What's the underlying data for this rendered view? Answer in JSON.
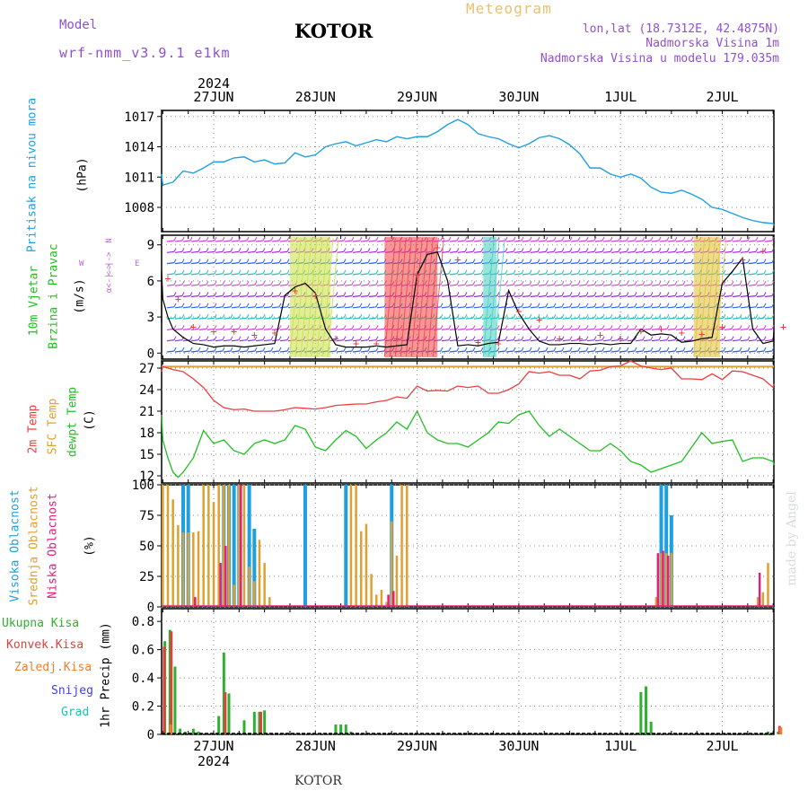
{
  "header": {
    "model_label": "Model",
    "model_name": "wrf-nmm_v3.9.1 e1km",
    "station": "KOTOR",
    "title": "Meteogram",
    "coords": "lon,lat (18.7312E, 42.4875N)",
    "elevation": "Nadmorska Visina 1m",
    "model_elevation": "Nadmorska Visina u modelu 179.035m"
  },
  "footer": {
    "station": "KOTOR",
    "credit": "made by Angel"
  },
  "time_axis": {
    "year": "2024",
    "labels": [
      "27JUN",
      "28JUN",
      "29JUN",
      "30JUN",
      "1JUL",
      "2JUL"
    ]
  },
  "colors": {
    "pressure": "#1ea0e0",
    "temp2m": "#e84040",
    "sfc": "#e0a030",
    "dewpt": "#20c020",
    "high_cloud": "#1ea0e0",
    "mid_cloud": "#e0a030",
    "low_cloud": "#e0207a",
    "total_precip": "#30b030",
    "conv_precip": "#e04040",
    "frozen_precip": "#f08030",
    "snow": "#4040e0",
    "hail": "#20c0b0"
  },
  "panels": {
    "pressure": {
      "ylabel_name": "Pritisak na nivou mora",
      "unit": "(hPa)"
    },
    "wind": {
      "ylabel_1": "10m Vjetar",
      "ylabel_2": "Brzina i Pravac",
      "unit": "(m/s)",
      "compass": [
        "N",
        "W",
        "E",
        "S"
      ],
      "compass_mid": "<-|->",
      "compass_low": "α<-|->"
    },
    "temp": {
      "ylabel_1": "2m Temp",
      "ylabel_2": "SFC Temp",
      "ylabel_3": "dewpt Temp",
      "unit": "(C)"
    },
    "cloud": {
      "ylabel_1": "Visoka Oblacnost",
      "ylabel_2": "Srednja Oblacnost",
      "ylabel_3": "Niska Oblacnost",
      "unit": "(%)"
    },
    "precip": {
      "legend": [
        "Ukupna Kisa",
        "Konvek.Kisa",
        "Zaledj.Kisa",
        "Snijeg",
        "Grad"
      ],
      "unit": "1hr Precip (mm)"
    }
  },
  "chart_data": [
    {
      "type": "line",
      "title": "Pritisak na nivou mora",
      "ylabel": "(hPa)",
      "x_unit": "days since 27JUN 00UTC",
      "ylim": [
        1005.6,
        1017.6
      ],
      "yticks": [
        1008,
        1011,
        1014,
        1017
      ],
      "series": [
        {
          "name": "Pritisak na nivou mora",
          "x": [
            -0.6,
            -0.5,
            -0.4,
            -0.3,
            -0.2,
            -0.1,
            0,
            0.1,
            0.2,
            0.3,
            0.4,
            0.5,
            0.6,
            0.7,
            0.8,
            0.9,
            1.0,
            1.1,
            1.2,
            1.3,
            1.4,
            1.5,
            1.6,
            1.7,
            1.8,
            1.9,
            2.0,
            2.1,
            2.2,
            2.3,
            2.4,
            2.5,
            2.6,
            2.7,
            2.8,
            2.9,
            3.0,
            3.1,
            3.2,
            3.3,
            3.4,
            3.5,
            3.6,
            3.7,
            3.8,
            3.9,
            4.0,
            4.1,
            4.2,
            4.3,
            4.4,
            4.5,
            4.6,
            4.7,
            4.8,
            4.9,
            5.0,
            5.1,
            5.2,
            5.3,
            5.4,
            5.5,
            5.6
          ],
          "y": [
            1011.3,
            1010.2,
            1010.5,
            1011.6,
            1011.4,
            1011.9,
            1012.5,
            1012.5,
            1012.9,
            1013.0,
            1012.5,
            1012.7,
            1012.3,
            1012.4,
            1013.4,
            1013.0,
            1013.2,
            1014.0,
            1014.3,
            1014.5,
            1014.1,
            1014.4,
            1014.7,
            1014.5,
            1015.0,
            1014.8,
            1015.0,
            1015.0,
            1015.5,
            1016.2,
            1016.7,
            1016.2,
            1015.3,
            1015.0,
            1014.8,
            1014.3,
            1013.9,
            1014.3,
            1014.9,
            1015.1,
            1014.8,
            1014.2,
            1013.3,
            1011.9,
            1011.9,
            1011.3,
            1011.0,
            1011.3,
            1010.9,
            1010.0,
            1009.5,
            1009.4,
            1009.7,
            1009.3,
            1008.8,
            1008.0,
            1007.8,
            1007.4,
            1007.0,
            1006.7,
            1006.5,
            1006.4,
            1006.2
          ]
        }
      ]
    },
    {
      "type": "line",
      "title": "10m Vjetar Brzina i Pravac",
      "ylabel": "(m/s)",
      "x_unit": "days since 27JUN 00UTC",
      "ylim": [
        -0.5,
        9.8
      ],
      "yticks": [
        0,
        3,
        6,
        9
      ],
      "series": [
        {
          "name": "10m Vjetar",
          "x": [
            -0.6,
            -0.55,
            -0.5,
            -0.45,
            -0.4,
            -0.3,
            -0.2,
            -0.1,
            0,
            0.1,
            0.2,
            0.3,
            0.4,
            0.5,
            0.6,
            0.7,
            0.8,
            0.9,
            1.0,
            1.1,
            1.2,
            1.3,
            1.4,
            1.5,
            1.6,
            1.7,
            1.8,
            1.9,
            2.0,
            2.1,
            2.2,
            2.3,
            2.4,
            2.5,
            2.6,
            2.7,
            2.8,
            2.9,
            3.0,
            3.1,
            3.2,
            3.3,
            3.4,
            3.5,
            3.6,
            3.7,
            3.8,
            3.9,
            4.0,
            4.1,
            4.2,
            4.3,
            4.4,
            4.5,
            4.6,
            4.7,
            4.8,
            4.9,
            5.0,
            5.1,
            5.2,
            5.3,
            5.4,
            5.5,
            5.6
          ],
          "y": [
            2.5,
            6.8,
            4.5,
            3.0,
            2.0,
            1.3,
            0.8,
            0.7,
            0.5,
            0.6,
            0.6,
            0.5,
            0.6,
            0.7,
            0.8,
            4.8,
            5.5,
            5.8,
            5.0,
            2.0,
            0.7,
            0.5,
            0.5,
            0.5,
            0.6,
            0.5,
            0.6,
            0.7,
            6.5,
            8.2,
            8.4,
            6.0,
            0.6,
            0.7,
            0.6,
            0.8,
            0.9,
            5.2,
            3.3,
            2.0,
            1.0,
            0.7,
            0.7,
            0.8,
            0.8,
            0.7,
            0.8,
            0.7,
            0.8,
            0.8,
            2.0,
            1.5,
            1.6,
            1.5,
            0.9,
            1.0,
            1.2,
            1.3,
            5.8,
            6.8,
            7.9,
            2.0,
            0.8,
            1.0,
            1.8
          ]
        },
        {
          "name": "marker",
          "x": [
            -0.55,
            -0.45,
            -0.35,
            -0.2,
            0,
            0.2,
            0.4,
            0.6,
            0.8,
            1.0,
            1.2,
            1.4,
            1.6,
            1.8,
            2.0,
            2.2,
            2.4,
            2.6,
            2.8,
            3.0,
            3.2,
            3.4,
            3.6,
            3.8,
            4.0,
            4.2,
            4.4,
            4.6,
            4.8,
            5.0,
            5.2,
            5.4,
            5.6
          ],
          "y": [
            7.5,
            6.2,
            4.5,
            2.2,
            1.8,
            1.8,
            1.5,
            1.7,
            5.2,
            4.8,
            1.2,
            0.8,
            0.8,
            1.2,
            6.5,
            8.8,
            7.8,
            0.9,
            0.8,
            3.5,
            2.8,
            1.2,
            1.2,
            1.5,
            1.2,
            1.8,
            2.0,
            1.7,
            1.6,
            2.2,
            7.8,
            8.5,
            2.2
          ]
        }
      ]
    },
    {
      "type": "line",
      "title": "2m Temp / SFC Temp / dewpt Temp",
      "ylabel": "(C)",
      "x_unit": "days since 27JUN 00UTC",
      "ylim": [
        11.0,
        28.0
      ],
      "yticks": [
        12,
        15,
        18,
        21,
        24,
        27
      ],
      "series": [
        {
          "name": "2m Temp",
          "x": [
            -0.6,
            -0.5,
            -0.4,
            -0.3,
            -0.2,
            -0.1,
            0,
            0.1,
            0.2,
            0.3,
            0.4,
            0.5,
            0.6,
            0.7,
            0.8,
            0.9,
            1.0,
            1.1,
            1.2,
            1.3,
            1.4,
            1.5,
            1.6,
            1.7,
            1.8,
            1.9,
            2.0,
            2.1,
            2.2,
            2.3,
            2.4,
            2.5,
            2.6,
            2.7,
            2.8,
            2.9,
            3.0,
            3.1,
            3.2,
            3.3,
            3.4,
            3.5,
            3.6,
            3.7,
            3.8,
            3.9,
            4.0,
            4.1,
            4.2,
            4.3,
            4.4,
            4.5,
            4.6,
            4.7,
            4.8,
            4.9,
            5.0,
            5.1,
            5.2,
            5.3,
            5.4,
            5.5,
            5.6
          ],
          "y": [
            26.5,
            27.2,
            26.8,
            26.5,
            25.5,
            24.3,
            22.5,
            21.5,
            21.2,
            21.3,
            21.0,
            21.0,
            21.0,
            21.2,
            21.5,
            21.4,
            21.3,
            21.5,
            21.8,
            21.9,
            22.0,
            22.0,
            22.3,
            22.5,
            23.0,
            22.8,
            24.5,
            23.8,
            23.9,
            23.8,
            24.5,
            24.3,
            24.5,
            23.5,
            23.5,
            24.0,
            24.8,
            26.5,
            26.3,
            26.5,
            26.0,
            26.0,
            25.5,
            26.6,
            26.7,
            27.2,
            27.3,
            28.0,
            27.3,
            27.0,
            26.8,
            27.0,
            25.5,
            25.5,
            25.4,
            26.2,
            25.4,
            26.6,
            26.5,
            26.0,
            25.5,
            24.3,
            24.8
          ]
        },
        {
          "name": "SFC Temp",
          "x": [
            -0.6,
            5.6
          ],
          "y": [
            27.2,
            27.2
          ]
        },
        {
          "name": "dewpt Temp",
          "x": [
            -0.6,
            -0.5,
            -0.45,
            -0.4,
            -0.35,
            -0.3,
            -0.2,
            -0.1,
            0,
            0.1,
            0.2,
            0.3,
            0.4,
            0.5,
            0.6,
            0.7,
            0.8,
            0.9,
            1.0,
            1.1,
            1.2,
            1.3,
            1.4,
            1.5,
            1.6,
            1.7,
            1.8,
            1.9,
            2.0,
            2.1,
            2.2,
            2.3,
            2.4,
            2.5,
            2.6,
            2.7,
            2.8,
            2.9,
            3.0,
            3.1,
            3.2,
            3.3,
            3.4,
            3.5,
            3.6,
            3.7,
            3.8,
            3.9,
            4.0,
            4.1,
            4.2,
            4.3,
            4.4,
            4.5,
            4.6,
            4.7,
            4.8,
            4.9,
            5.0,
            5.1,
            5.2,
            5.3,
            5.4,
            5.5,
            5.6
          ],
          "y": [
            20.5,
            17.0,
            14.5,
            12.5,
            11.8,
            12.5,
            14.5,
            18.3,
            16.5,
            17.0,
            15.5,
            15.0,
            16.5,
            17.0,
            16.5,
            17.0,
            19.0,
            18.5,
            16.0,
            15.5,
            17.0,
            18.3,
            17.5,
            15.8,
            17.0,
            18.0,
            19.5,
            18.5,
            21.0,
            18.0,
            17.0,
            16.5,
            16.5,
            16.0,
            17.0,
            18.0,
            19.5,
            19.3,
            20.5,
            21.0,
            19.0,
            17.5,
            18.5,
            17.5,
            16.5,
            15.5,
            15.5,
            16.5,
            15.5,
            14.0,
            13.5,
            12.5,
            13.0,
            13.5,
            14.0,
            16.0,
            18.0,
            16.5,
            16.8,
            17.0,
            14.0,
            14.5,
            14.5,
            14.0,
            13.5
          ]
        }
      ]
    },
    {
      "type": "bar",
      "title": "Visoka / Srednja / Niska Oblacnost",
      "ylabel": "(%)",
      "x_unit": "days since 27JUN 00UTC",
      "ylim": [
        0,
        100
      ],
      "yticks": [
        0,
        25,
        50,
        75,
        100
      ],
      "series": [
        {
          "name": "Visoka Oblacnost",
          "x": [
            -0.3,
            -0.25,
            0.1,
            0.15,
            0.2,
            0.25,
            0.35,
            0.4,
            0.9,
            1.3,
            1.75,
            4.4,
            4.45,
            4.5
          ],
          "y": [
            100,
            100,
            100,
            100,
            100,
            100,
            100,
            64,
            100,
            100,
            100,
            100,
            100,
            75
          ]
        },
        {
          "name": "Srednja Oblacnost",
          "x": [
            -0.55,
            -0.5,
            -0.45,
            -0.4,
            -0.35,
            -0.3,
            -0.25,
            -0.2,
            -0.15,
            -0.1,
            -0.05,
            0,
            0.05,
            0.1,
            0.15,
            0.2,
            0.25,
            0.3,
            0.35,
            0.4,
            0.45,
            0.5,
            0.55,
            1.35,
            1.4,
            1.45,
            1.5,
            1.55,
            1.6,
            1.65,
            1.7,
            1.75,
            1.8,
            1.85,
            1.9,
            4.35,
            4.4,
            4.45,
            4.5,
            5.35,
            5.4,
            5.45
          ],
          "y": [
            100,
            100,
            100,
            88,
            67,
            61,
            61,
            61,
            62,
            100,
            100,
            86,
            100,
            100,
            100,
            18,
            100,
            100,
            33,
            21,
            55,
            36,
            8,
            100,
            100,
            62,
            68,
            27,
            10,
            14,
            4,
            70,
            42,
            100,
            100,
            8,
            44,
            44,
            44,
            8,
            12,
            36
          ]
        },
        {
          "name": "Niska Oblacnost",
          "x": [
            -0.2,
            0.05,
            0.1,
            0.25,
            1.7,
            1.75,
            4.35,
            4.4,
            4.45,
            5.35
          ],
          "y": [
            8,
            36,
            50,
            100,
            10,
            13,
            44,
            46,
            42,
            28
          ]
        }
      ]
    },
    {
      "type": "bar",
      "title": "1hr Precip",
      "ylabel": "1hr Precip (mm)",
      "x_unit": "days since 27JUN 00UTC",
      "ylim": [
        0,
        0.89
      ],
      "yticks": [
        0,
        0.2,
        0.4,
        0.6,
        0.8
      ],
      "series": [
        {
          "name": "Ukupna Kisa",
          "x": [
            -0.58,
            -0.53,
            -0.48,
            -0.43,
            -0.38,
            -0.33,
            -0.28,
            -0.2,
            -0.15,
            0.05,
            0.1,
            0.15,
            0.3,
            0.4,
            0.45,
            0.5,
            1.2,
            1.25,
            1.3,
            1.35,
            4.2,
            4.25,
            4.3,
            5.45,
            5.55
          ],
          "y": [
            0.28,
            0.68,
            0.66,
            0.74,
            0.48,
            0.04,
            0.02,
            0.04,
            0.02,
            0.13,
            0.58,
            0.29,
            0.1,
            0.16,
            0.16,
            0.17,
            0.07,
            0.07,
            0.07,
            0.02,
            0.3,
            0.34,
            0.09,
            0.02,
            0.02
          ]
        },
        {
          "name": "Konvek.Kisa",
          "x": [
            -0.5,
            -0.43,
            0.1,
            0.45,
            5.55
          ],
          "y": [
            0.62,
            0.73,
            0.3,
            0.16,
            0.06
          ]
        },
        {
          "name": "Zaledj.Kisa",
          "x": [
            -0.45,
            5.55
          ],
          "y": [
            0.07,
            0.05
          ]
        }
      ]
    }
  ]
}
